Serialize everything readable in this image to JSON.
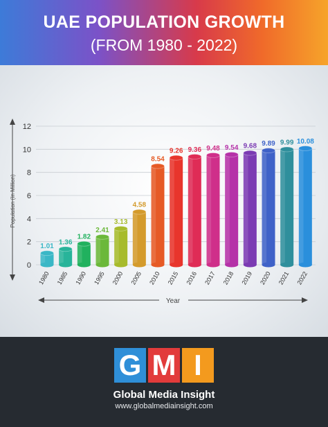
{
  "header": {
    "title": "UAE POPULATION GROWTH",
    "subtitle": "(FROM 1980 - 2022)"
  },
  "chart_data": {
    "type": "bar",
    "categories": [
      "1980",
      "1985",
      "1990",
      "1995",
      "2000",
      "2005",
      "2010",
      "2015",
      "2016",
      "2017",
      "2018",
      "2019",
      "2020",
      "2021",
      "2022"
    ],
    "values": [
      1.01,
      1.36,
      1.82,
      2.41,
      3.13,
      4.58,
      8.54,
      9.26,
      9.36,
      9.48,
      9.54,
      9.68,
      9.89,
      9.99,
      10.08
    ],
    "value_labels": [
      "1.01",
      "1.36",
      "1.82",
      "2.41",
      "3.13",
      "4.58",
      "8.54",
      "9.26",
      "9.36",
      "9.48",
      "9.54",
      "9.68",
      "9.89",
      "9.99",
      "10.08"
    ],
    "bar_colors": [
      "#3ab7c6",
      "#28b49a",
      "#21b15e",
      "#6bb83a",
      "#a7bb2c",
      "#d49b2c",
      "#e65a26",
      "#e8352c",
      "#df2c56",
      "#cf2f8a",
      "#b532a8",
      "#7b3bb3",
      "#3f62c8",
      "#2f8f9c",
      "#2a8fdc"
    ],
    "ylabel": "Population (In Million)",
    "xlabel": "Year",
    "ylim": [
      0,
      12
    ],
    "yticks": [
      "0",
      "2",
      "4",
      "6",
      "8",
      "10",
      "12"
    ],
    "grid": true
  },
  "footer": {
    "logo_letters": [
      "G",
      "M",
      "I"
    ],
    "logo_colors": [
      "#2f8fd8",
      "#e23b3b",
      "#f39a1e"
    ],
    "brand_name": "Global Media Insight",
    "url": "www.globalmediainsight.com"
  }
}
